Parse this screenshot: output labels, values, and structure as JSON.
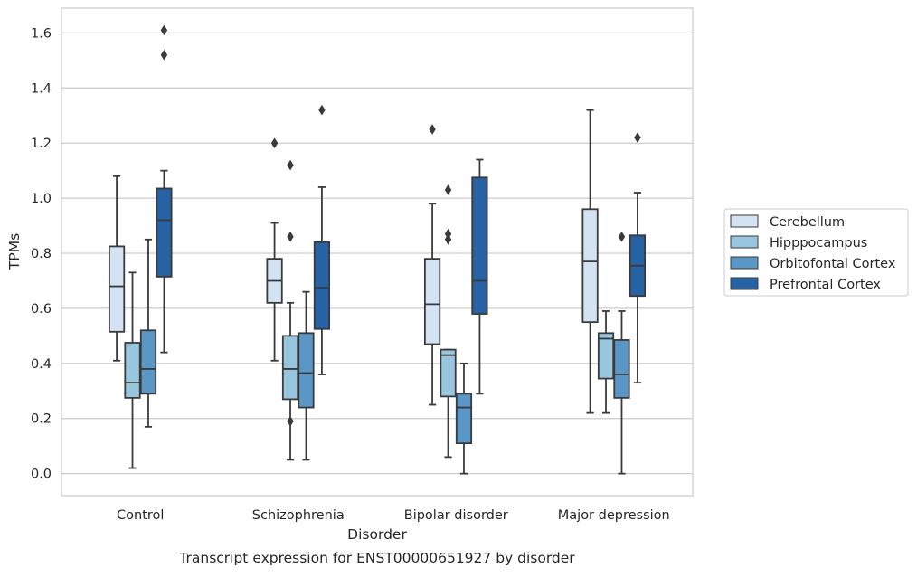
{
  "chart_data": {
    "type": "boxplot",
    "title": "",
    "caption": "Transcript expression for ENST00000651927 by disorder",
    "xlabel": "Disorder",
    "ylabel": "TPMs",
    "ylim": [
      -0.08,
      1.69
    ],
    "yticks": [
      0.0,
      0.2,
      0.4,
      0.6,
      0.8,
      1.0,
      1.2,
      1.4,
      1.6
    ],
    "ytick_labels": [
      "0.0",
      "0.2",
      "0.4",
      "0.6",
      "0.8",
      "1.0",
      "1.2",
      "1.4",
      "1.6"
    ],
    "grid": true,
    "legend_position": "right",
    "categories": [
      "Control",
      "Schizophrenia",
      "Bipolar disorder",
      "Major depression"
    ],
    "series": [
      {
        "name": "Cerebellum",
        "color": "#d4e3f3",
        "boxes": [
          {
            "q1": 0.515,
            "median": 0.68,
            "q3": 0.825,
            "whisker_low": 0.41,
            "whisker_high": 1.08,
            "outliers": []
          },
          {
            "q1": 0.62,
            "median": 0.7,
            "q3": 0.78,
            "whisker_low": 0.41,
            "whisker_high": 0.91,
            "outliers": [
              1.2
            ]
          },
          {
            "q1": 0.47,
            "median": 0.615,
            "q3": 0.78,
            "whisker_low": 0.25,
            "whisker_high": 0.98,
            "outliers": [
              1.25
            ]
          },
          {
            "q1": 0.55,
            "median": 0.77,
            "q3": 0.96,
            "whisker_low": 0.22,
            "whisker_high": 1.32,
            "outliers": []
          }
        ]
      },
      {
        "name": "Hipppocampus",
        "color": "#99c6df",
        "boxes": [
          {
            "q1": 0.275,
            "median": 0.33,
            "q3": 0.475,
            "whisker_low": 0.02,
            "whisker_high": 0.73,
            "outliers": []
          },
          {
            "q1": 0.27,
            "median": 0.38,
            "q3": 0.5,
            "whisker_low": 0.05,
            "whisker_high": 0.62,
            "outliers": [
              0.19,
              0.86,
              1.12
            ]
          },
          {
            "q1": 0.28,
            "median": 0.43,
            "q3": 0.45,
            "whisker_low": 0.06,
            "whisker_high": 0.45,
            "outliers": [
              0.85,
              0.87,
              1.03
            ]
          },
          {
            "q1": 0.345,
            "median": 0.49,
            "q3": 0.51,
            "whisker_low": 0.22,
            "whisker_high": 0.59,
            "outliers": []
          }
        ]
      },
      {
        "name": "Orbitofontal Cortex",
        "color": "#5a97c6",
        "boxes": [
          {
            "q1": 0.29,
            "median": 0.38,
            "q3": 0.52,
            "whisker_low": 0.17,
            "whisker_high": 0.85,
            "outliers": []
          },
          {
            "q1": 0.24,
            "median": 0.365,
            "q3": 0.51,
            "whisker_low": 0.05,
            "whisker_high": 0.66,
            "outliers": []
          },
          {
            "q1": 0.11,
            "median": 0.24,
            "q3": 0.29,
            "whisker_low": 0.0,
            "whisker_high": 0.4,
            "outliers": []
          },
          {
            "q1": 0.275,
            "median": 0.36,
            "q3": 0.485,
            "whisker_low": 0.0,
            "whisker_high": 0.59,
            "outliers": [
              0.86
            ]
          }
        ]
      },
      {
        "name": "Prefrontal Cortex",
        "color": "#2762a4",
        "boxes": [
          {
            "q1": 0.715,
            "median": 0.92,
            "q3": 1.035,
            "whisker_low": 0.44,
            "whisker_high": 1.1,
            "outliers": [
              1.52,
              1.61
            ]
          },
          {
            "q1": 0.525,
            "median": 0.675,
            "q3": 0.84,
            "whisker_low": 0.36,
            "whisker_high": 1.04,
            "outliers": [
              1.32
            ]
          },
          {
            "q1": 0.58,
            "median": 0.7,
            "q3": 1.075,
            "whisker_low": 0.29,
            "whisker_high": 1.14,
            "outliers": []
          },
          {
            "q1": 0.645,
            "median": 0.755,
            "q3": 0.865,
            "whisker_low": 0.33,
            "whisker_high": 1.02,
            "outliers": [
              1.22
            ]
          }
        ]
      }
    ]
  }
}
